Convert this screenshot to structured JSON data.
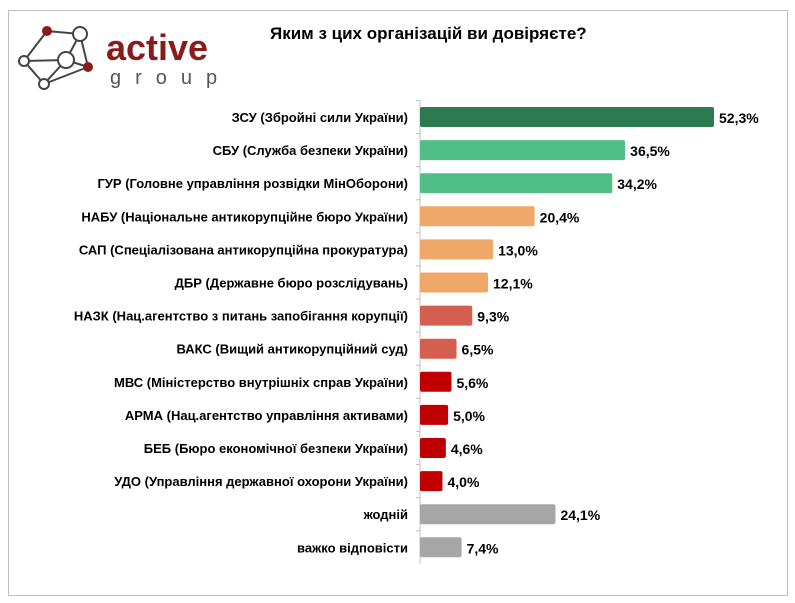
{
  "logo": {
    "text1": "active",
    "text2": "group"
  },
  "chart_data": {
    "type": "bar",
    "title": "Яким з цих організацій ви довіряєте?",
    "categories": [
      "ЗСУ (Збройні сили України)",
      "СБУ (Служба безпеки України)",
      "ГУР (Головне управління розвідки МінОборони)",
      "НАБУ (Національне антикорупційне бюро України)",
      "САП (Спеціалізована антикорупційна прокуратура)",
      "ДБР (Державне бюро розслідувань)",
      "НАЗК (Нац.агентство з питань запобігання корупції)",
      "ВАКС (Вищий антикорупційний суд)",
      "МВС (Міністерство внутрішніх справ України)",
      "АРМА (Нац.агентство управління активами)",
      "БЕБ (Бюро економічної безпеки України)",
      "УДО (Управління державної охорони України)",
      "жодній",
      "важко відповісти"
    ],
    "values": [
      52.3,
      36.5,
      34.2,
      20.4,
      13.0,
      12.1,
      9.3,
      6.5,
      5.6,
      5.0,
      4.6,
      4.0,
      24.1,
      7.4
    ],
    "value_labels": [
      "52,3%",
      "36,5%",
      "34,2%",
      "20,4%",
      "13,0%",
      "12,1%",
      "9,3%",
      "6,5%",
      "5,6%",
      "5,0%",
      "4,6%",
      "4,0%",
      "24,1%",
      "7,4%"
    ],
    "colors": [
      "#2e7a50",
      "#52be87",
      "#52be87",
      "#f0a868",
      "#f0a868",
      "#f0a868",
      "#d45f50",
      "#d45f50",
      "#c00000",
      "#c00000",
      "#c00000",
      "#c00000",
      "#a6a6a6",
      "#a6a6a6"
    ],
    "xlabel": "",
    "ylabel": "",
    "xlim": [
      0,
      60
    ],
    "grid": false
  }
}
